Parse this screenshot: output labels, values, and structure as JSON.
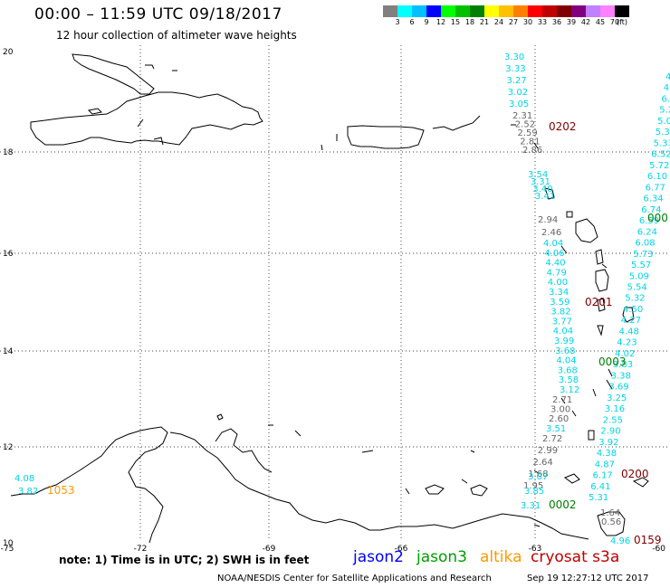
{
  "title": "00:00 – 11:59 UTC 09/18/2017",
  "subtitle": "12 hour collection of altimeter wave heights",
  "legend": {
    "colors": [
      "#808080",
      "#00ffff",
      "#00c0ff",
      "#0000ff",
      "#00ff00",
      "#00c000",
      "#008000",
      "#ffff00",
      "#ffc000",
      "#ff8000",
      "#ff0000",
      "#c00000",
      "#800000",
      "#800080",
      "#c080ff",
      "#ff80ff",
      "#000000"
    ],
    "labels": [
      "3",
      "6",
      "9",
      "12",
      "15",
      "18",
      "21",
      "24",
      "27",
      "30",
      "33",
      "36",
      "39",
      "42",
      "45",
      "70",
      "(ft)"
    ]
  },
  "axes": {
    "lat_labels": [
      "20",
      "18",
      "16",
      "14",
      "12",
      "10"
    ],
    "lon_labels": [
      "-75",
      "-72",
      "-69",
      "-66",
      "-63",
      "-60"
    ]
  },
  "satellite_colors": {
    "jason2": "#0000ff",
    "jason3": "#00a000",
    "altika": "#ff9900",
    "cryosat": "#c00000",
    "gray": "#666666",
    "cyan": "#00d4e8",
    "marker_dark": "#800000",
    "marker_green": "#008000"
  },
  "tracks": {
    "cyan_a": [
      "3.30",
      "3.33",
      "3.27",
      "3.02",
      "3.05"
    ],
    "gray_a": [
      "2.31",
      "2.52",
      "2.59",
      "2.81",
      "2.86"
    ],
    "cyan_b": [
      "3.54",
      "3.31",
      "3.40",
      "3.41"
    ],
    "gray_b": [
      "2.94",
      "2.46"
    ],
    "cyan_c": [
      "4.04",
      "4.06",
      "4.40",
      "4.79",
      "4.00",
      "3.34",
      "3.59",
      "3.82",
      "3.77",
      "4.04",
      "3.99",
      "3.68",
      "4.04",
      "3.68",
      "3.58",
      "3.12"
    ],
    "gray_c": [
      "2.71",
      "3.00",
      "2.60"
    ],
    "cyan_d": [
      "3.51"
    ],
    "gray_d": [
      "2.72",
      "2.99",
      "2.64",
      "1.68",
      "1.95"
    ],
    "cyan_e": [
      "3.07",
      "3.85",
      "3.31"
    ],
    "right_b": [
      "4",
      "4",
      "6.",
      "5.2",
      "5.07",
      "5.37",
      "5.33",
      "6.52",
      "5.72",
      "6.10",
      "6.77",
      "6.34",
      "6.74",
      "6.59",
      "6.24",
      "6.08",
      "5.73",
      "5.57",
      "5.09",
      "5.54",
      "5.32",
      "4.50",
      "4.27",
      "4.48",
      "4.23",
      "4.02",
      "3.83",
      "3.38",
      "3.69",
      "3.25",
      "3.16",
      "2.55",
      "2.90",
      "3.92",
      "4.38",
      "4.87",
      "6.17",
      "6.41",
      "5.31"
    ],
    "right_gray": [
      "1.64",
      "0.56"
    ],
    "right_end": [
      "4.96"
    ],
    "west": [
      "4.08",
      "3.82"
    ]
  },
  "markers": {
    "m0202": "0202",
    "m0201": "0201",
    "m0200": "0200",
    "m0159": "0159",
    "m000": "000",
    "m0003": "0003",
    "m0002": "0002",
    "m1053": "1053"
  },
  "note": "note:  1) Time is in UTC;  2) SWH is in feet",
  "satellites": {
    "jason2": "jason2",
    "jason3": "jason3",
    "altika": "altika",
    "cryosat": "cryosat s3a"
  },
  "credit": "NOAA/NESDIS Center for Satellite Applications and Research",
  "timestamp": "Sep 19 12:27:12 UTC 2017"
}
